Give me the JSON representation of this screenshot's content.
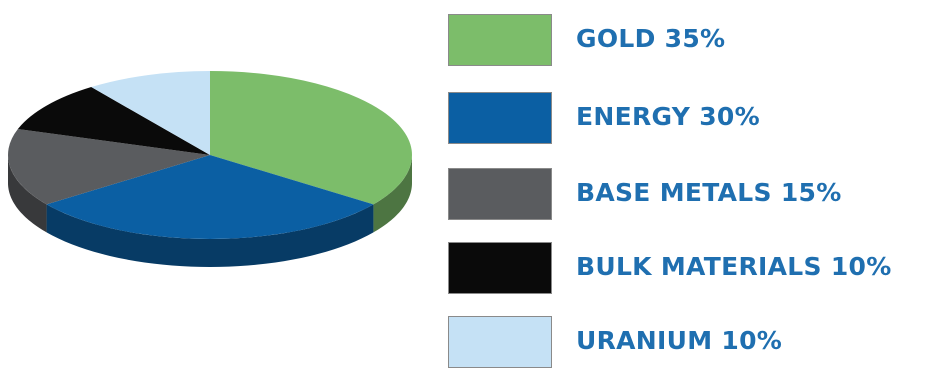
{
  "chart_data": {
    "type": "pie",
    "title": "",
    "slices": [
      {
        "label": "GOLD 35%",
        "name": "GOLD",
        "value": 35,
        "color": "#7cbd6a"
      },
      {
        "label": "ENERGY 30%",
        "name": "ENERGY",
        "value": 30,
        "color": "#0b5fa3"
      },
      {
        "label": "BASE METALS 15%",
        "name": "BASE METALS",
        "value": 15,
        "color": "#5a5c5f"
      },
      {
        "label": "BULK MATERIALS 10%",
        "name": "BULK MATERIALS",
        "value": 10,
        "color": "#0a0a0a"
      },
      {
        "label": "URANIUM 10%",
        "name": "URANIUM",
        "value": 10,
        "color": "#c5e1f5"
      }
    ],
    "legend_position": "right",
    "style": "3d-tilted"
  }
}
